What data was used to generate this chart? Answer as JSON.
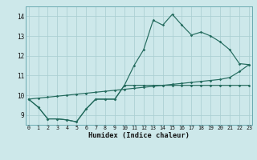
{
  "xlabel": "Humidex (Indice chaleur)",
  "xlim": [
    0,
    23
  ],
  "ylim": [
    8.5,
    14.5
  ],
  "xticks": [
    0,
    1,
    2,
    3,
    4,
    5,
    6,
    7,
    8,
    9,
    10,
    11,
    12,
    13,
    14,
    15,
    16,
    17,
    18,
    19,
    20,
    21,
    22,
    23
  ],
  "yticks": [
    9,
    10,
    11,
    12,
    13,
    14
  ],
  "background_color": "#cde8ea",
  "grid_color": "#aacfd2",
  "line_color": "#246b5e",
  "line1_y": [
    9.8,
    9.4,
    8.8,
    8.8,
    8.75,
    8.65,
    9.3,
    9.8,
    9.8,
    9.8,
    10.5,
    11.5,
    12.3,
    13.8,
    13.55,
    14.1,
    13.55,
    13.05,
    13.2,
    13.0,
    12.7,
    12.3,
    11.6,
    11.55
  ],
  "line2_y": [
    9.8,
    9.4,
    8.8,
    8.8,
    8.75,
    8.65,
    9.3,
    9.8,
    9.8,
    9.8,
    10.5,
    10.5,
    10.5,
    10.5,
    10.5,
    10.5,
    10.5,
    10.5,
    10.5,
    10.5,
    10.5,
    10.5,
    10.5,
    10.5
  ],
  "line3_y": [
    9.8,
    9.85,
    9.9,
    9.95,
    10.0,
    10.05,
    10.1,
    10.15,
    10.2,
    10.25,
    10.3,
    10.35,
    10.4,
    10.45,
    10.5,
    10.55,
    10.6,
    10.65,
    10.7,
    10.75,
    10.8,
    10.9,
    11.2,
    11.55
  ]
}
